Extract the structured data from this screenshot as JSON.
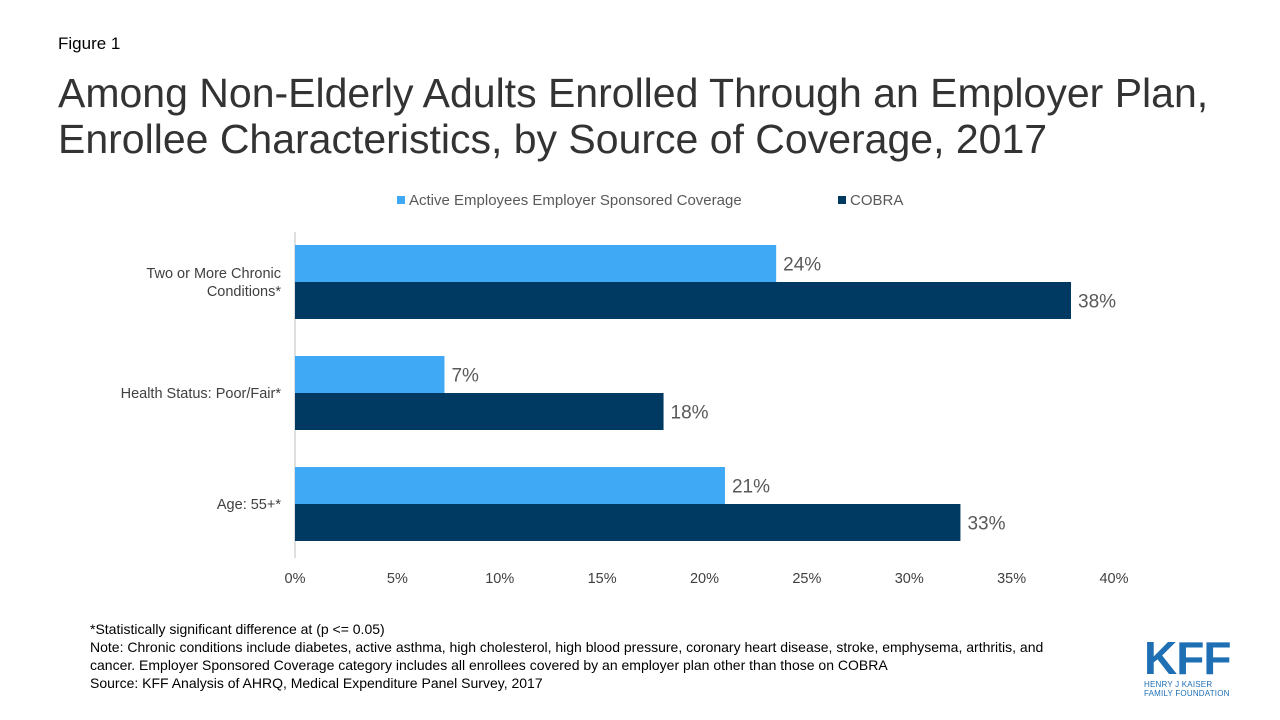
{
  "figure_label": "Figure 1",
  "title": "Among Non-Elderly Adults Enrolled Through an Employer Plan, Enrollee Characteristics, by Source of Coverage, 2017",
  "colors": {
    "active": "#3fa9f5",
    "cobra": "#003a63",
    "axis": "#bfbfbf",
    "text": "#595959"
  },
  "legend": {
    "active_label": "Active Employees Employer Sponsored Coverage",
    "cobra_label": "COBRA"
  },
  "chart_data": {
    "type": "bar",
    "orientation": "horizontal",
    "categories": [
      "Two or More Chronic Conditions*",
      "Health Status: Poor/Fair*",
      "Age: 55+*"
    ],
    "series": [
      {
        "name": "Active Employees Employer Sponsored Coverage",
        "values": [
          23.5,
          7.3,
          21.0
        ],
        "labels": [
          "24%",
          "7%",
          "21%"
        ]
      },
      {
        "name": "COBRA",
        "values": [
          37.9,
          18.0,
          32.5
        ],
        "labels": [
          "38%",
          "18%",
          "33%"
        ]
      }
    ],
    "xlim": [
      0,
      40
    ],
    "xticks": [
      "0%",
      "5%",
      "10%",
      "15%",
      "20%",
      "25%",
      "30%",
      "35%",
      "40%"
    ],
    "legend_position": "top",
    "grid": false
  },
  "notes": {
    "line1": "*Statistically significant difference at (p <= 0.05)",
    "line2": "Note: Chronic conditions include diabetes, active asthma, high cholesterol, high blood pressure, coronary heart disease, stroke, emphysema, arthritis, and cancer.  Employer Sponsored Coverage category includes all enrollees covered by an employer plan other than those on COBRA",
    "line3": "Source: KFF Analysis of AHRQ, Medical Expenditure Panel Survey, 2017"
  },
  "logo": {
    "mark": "KFF",
    "line1": "HENRY J KAISER",
    "line2": "FAMILY FOUNDATION"
  }
}
